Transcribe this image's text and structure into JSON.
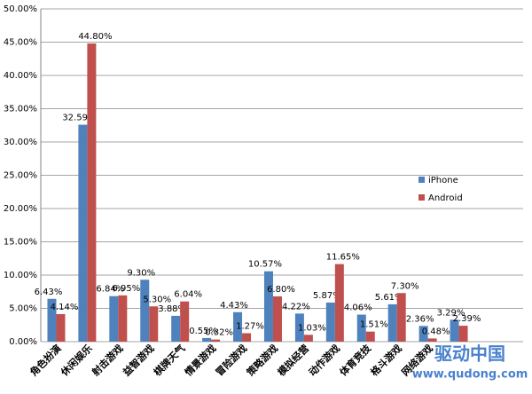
{
  "chart_data": {
    "type": "bar",
    "categories": [
      "角色扮演",
      "休闲娱乐",
      "射击游戏",
      "益智游戏",
      "棋牌天气",
      "情景游戏",
      "冒险游戏",
      "策略游戏",
      "模拟经营",
      "动作游戏",
      "体育竞技",
      "格斗游戏",
      "网络游戏",
      null
    ],
    "series": [
      {
        "name": "iPhone",
        "color": "#4f81bd",
        "values": [
          6.43,
          32.59,
          6.84,
          9.3,
          3.88,
          0.55,
          4.43,
          10.57,
          4.22,
          5.87,
          4.06,
          5.61,
          2.36,
          3.29
        ],
        "value_labels": [
          "6.43%",
          "32.59%",
          "6.84%",
          "9.30%",
          "3.88%",
          "0.55%",
          "4.43%",
          "10.57%",
          "4.22%",
          "5.87%",
          "4.06%",
          "5.61%",
          "2.36%",
          "3.29%"
        ]
      },
      {
        "name": "Android",
        "color": "#c0504d",
        "values": [
          4.14,
          44.8,
          6.95,
          5.3,
          6.04,
          0.32,
          1.27,
          6.8,
          1.03,
          11.65,
          1.51,
          7.3,
          0.48,
          2.39
        ],
        "value_labels": [
          "4.14%",
          "44.80%",
          "6.95%",
          "5.30%",
          "6.04%",
          "0.32%",
          "1.27%",
          "6.80%",
          "1.03%",
          "11.65%",
          "1.51%",
          "7.30%",
          "0.48%",
          "2.39%"
        ]
      }
    ],
    "ylim": [
      0,
      50
    ],
    "yticks": [
      {
        "value": 0,
        "label": "0.00%"
      },
      {
        "value": 5,
        "label": "5.00%"
      },
      {
        "value": 10,
        "label": "10.00%"
      },
      {
        "value": 15,
        "label": "15.00%"
      },
      {
        "value": 20,
        "label": "20.00%"
      },
      {
        "value": 25,
        "label": "25.00%"
      },
      {
        "value": 30,
        "label": "30.00%"
      },
      {
        "value": 35,
        "label": "35.00%"
      },
      {
        "value": 40,
        "label": "40.00%"
      },
      {
        "value": 45,
        "label": "45.00%"
      },
      {
        "value": 50,
        "label": "50.00%"
      }
    ],
    "grid": true,
    "legend": "right",
    "watermark": [
      "驱动中国",
      "www.qudong.com"
    ]
  }
}
